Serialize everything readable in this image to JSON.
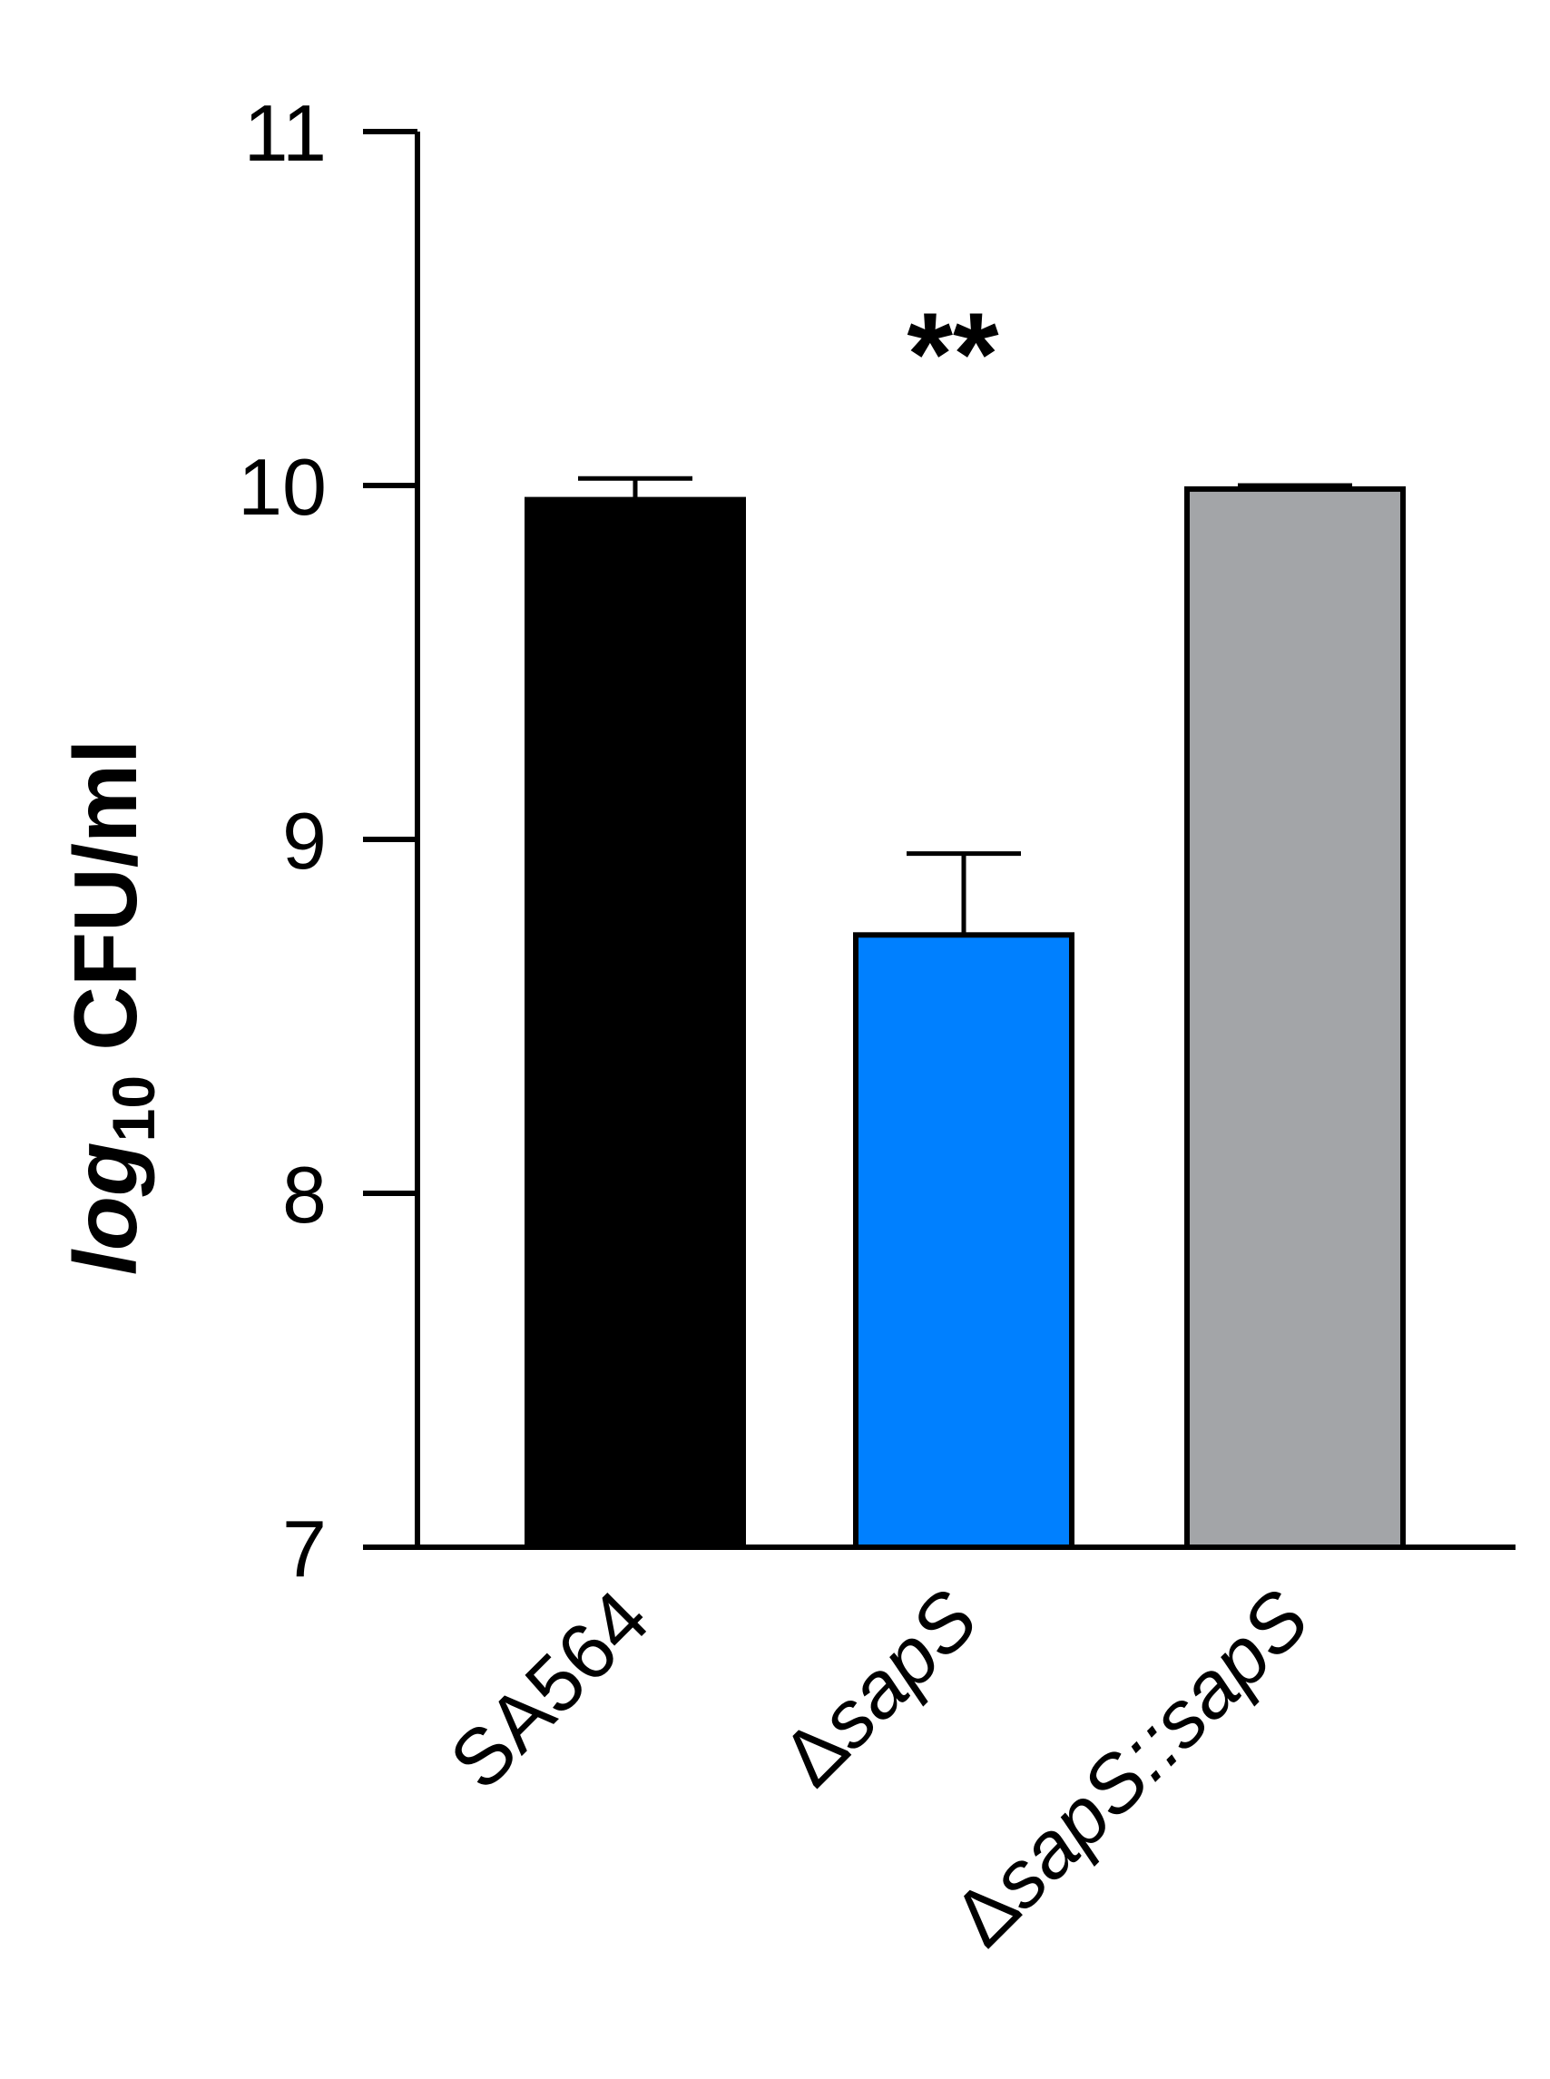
{
  "chart_data": {
    "type": "bar",
    "ylabel": {
      "base": "log",
      "subscript": "10",
      "rest": " CFU/ml"
    },
    "ylim": [
      7,
      11
    ],
    "yticks": [
      7,
      8,
      9,
      10,
      11
    ],
    "grid": false,
    "categories": [
      {
        "prefix": "",
        "name": "SA564",
        "italic": false
      },
      {
        "prefix": "Δ",
        "name": "sapS",
        "italic": true
      },
      {
        "prefix": "Δ",
        "name": "sapS::sapS",
        "italic": true
      }
    ],
    "values": [
      9.96,
      8.73,
      9.99
    ],
    "errors": [
      0.06,
      0.23,
      0.01
    ],
    "colors": [
      "#000000",
      "#0080ff",
      "#a3a5a8"
    ],
    "annotations": [
      {
        "text": "**",
        "category_index": 1,
        "y": 10.5
      }
    ]
  }
}
